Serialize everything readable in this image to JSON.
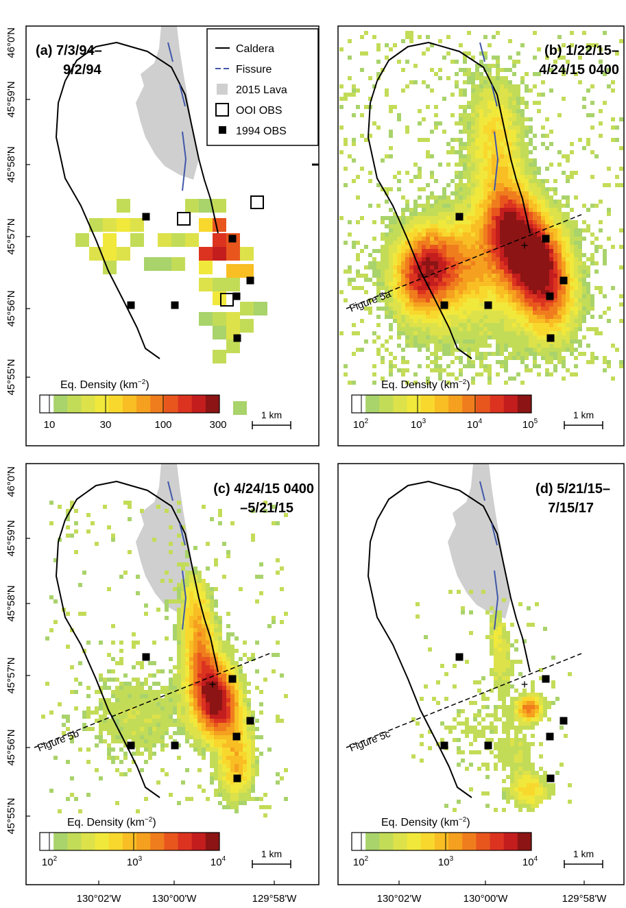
{
  "y_ticks": [
    "46°0'N",
    "45°59'N",
    "45°58'N",
    "45°57'N",
    "45°56'N",
    "45°55'N"
  ],
  "x_ticks": [
    "130°02'W",
    "130°00'W",
    "129°58'W"
  ],
  "legend": {
    "caldera": "Caldera",
    "fissure": "Fissure",
    "lava": "2015 Lava",
    "ooi": "OOI OBS",
    "obs1994": "1994 OBS"
  },
  "colors": {
    "ramp": [
      "#ffffff",
      "#a9d36b",
      "#c3dc58",
      "#dde24a",
      "#f1e83c",
      "#f9d82e",
      "#f8be24",
      "#f5a01f",
      "#f07d1d",
      "#e8561e",
      "#dc3320",
      "#c31d1e",
      "#8c1414"
    ],
    "lava": "#cfcfcf",
    "fissure": "#3f57a8"
  },
  "scale_bar_label": "1 km",
  "colorbar_title": "Eq. Density (km",
  "colorbar_title_exp": "−2",
  "colorbar_title_end": ")",
  "panels": [
    {
      "id": "a",
      "title_line1": "(a) 7/3/94–",
      "title_line2": "9/2/94",
      "colorbar_ticks": [
        {
          "base": "10",
          "exp": ""
        },
        {
          "base": "30",
          "exp": ""
        },
        {
          "base": "100",
          "exp": ""
        },
        {
          "base": "300",
          "exp": ""
        }
      ]
    },
    {
      "id": "b",
      "title_line1": "(b) 1/22/15–",
      "title_line2": "4/24/15 0400",
      "profile_label": "Figure 5a",
      "colorbar_ticks": [
        {
          "base": "10",
          "exp": "2"
        },
        {
          "base": "10",
          "exp": "3"
        },
        {
          "base": "10",
          "exp": "4"
        },
        {
          "base": "10",
          "exp": "5"
        }
      ]
    },
    {
      "id": "c",
      "title_line1": "(c) 4/24/15 0400",
      "title_line2": "–5/21/15",
      "profile_label": "Figure 5b",
      "colorbar_ticks": [
        {
          "base": "10",
          "exp": "2"
        },
        {
          "base": "10",
          "exp": "3"
        },
        {
          "base": "10",
          "exp": "4"
        }
      ]
    },
    {
      "id": "d",
      "title_line1": "(d) 5/21/15–",
      "title_line2": "7/15/17",
      "profile_label": "Figure 5c",
      "colorbar_ticks": [
        {
          "base": "10",
          "exp": "2"
        },
        {
          "base": "10",
          "exp": "3"
        },
        {
          "base": "10",
          "exp": "4"
        }
      ]
    }
  ]
}
